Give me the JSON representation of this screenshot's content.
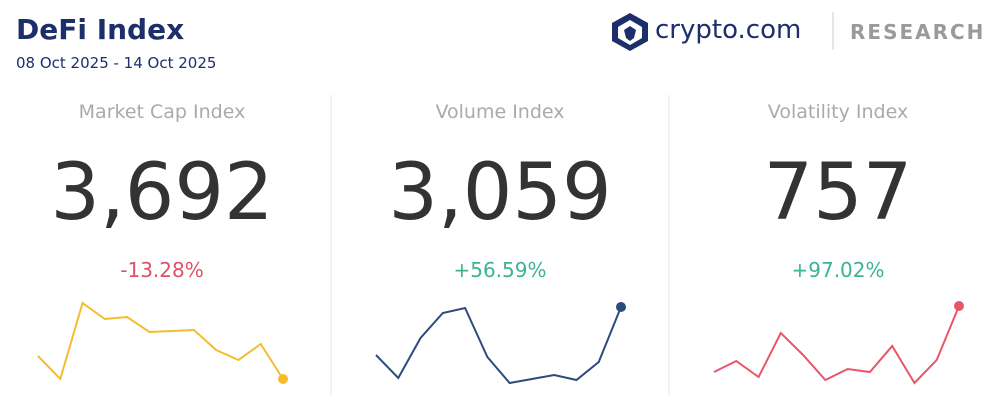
{
  "header": {
    "title": "DeFi Index",
    "date_range": "08 Oct 2025 - 14 Oct 2025",
    "brand": "crypto.com",
    "section": "RESEARCH"
  },
  "cards": [
    {
      "title": "Market Cap Index",
      "value": "3,692",
      "change": "-13.28%",
      "change_color": "#e0506a",
      "line_color": "#f5bd2e",
      "values": [
        34,
        11,
        87,
        71,
        73,
        58,
        59,
        60,
        40,
        30,
        46,
        11
      ],
      "ylim": [
        0,
        100
      ]
    },
    {
      "title": "Volume Index",
      "value": "3,059",
      "change": "+56.59%",
      "change_color": "#3bb394",
      "line_color": "#2d4a7c",
      "values": [
        35,
        12,
        52,
        77,
        82,
        33,
        7,
        11,
        15,
        10,
        28,
        83
      ],
      "ylim": [
        0,
        100
      ]
    },
    {
      "title": "Volatility Index",
      "value": "757",
      "change": "+97.02%",
      "change_color": "#3bb394",
      "line_color": "#e8566a",
      "values": [
        18,
        29,
        13,
        57,
        35,
        10,
        21,
        18,
        44,
        7,
        30,
        84
      ],
      "ylim": [
        0,
        100
      ]
    }
  ]
}
